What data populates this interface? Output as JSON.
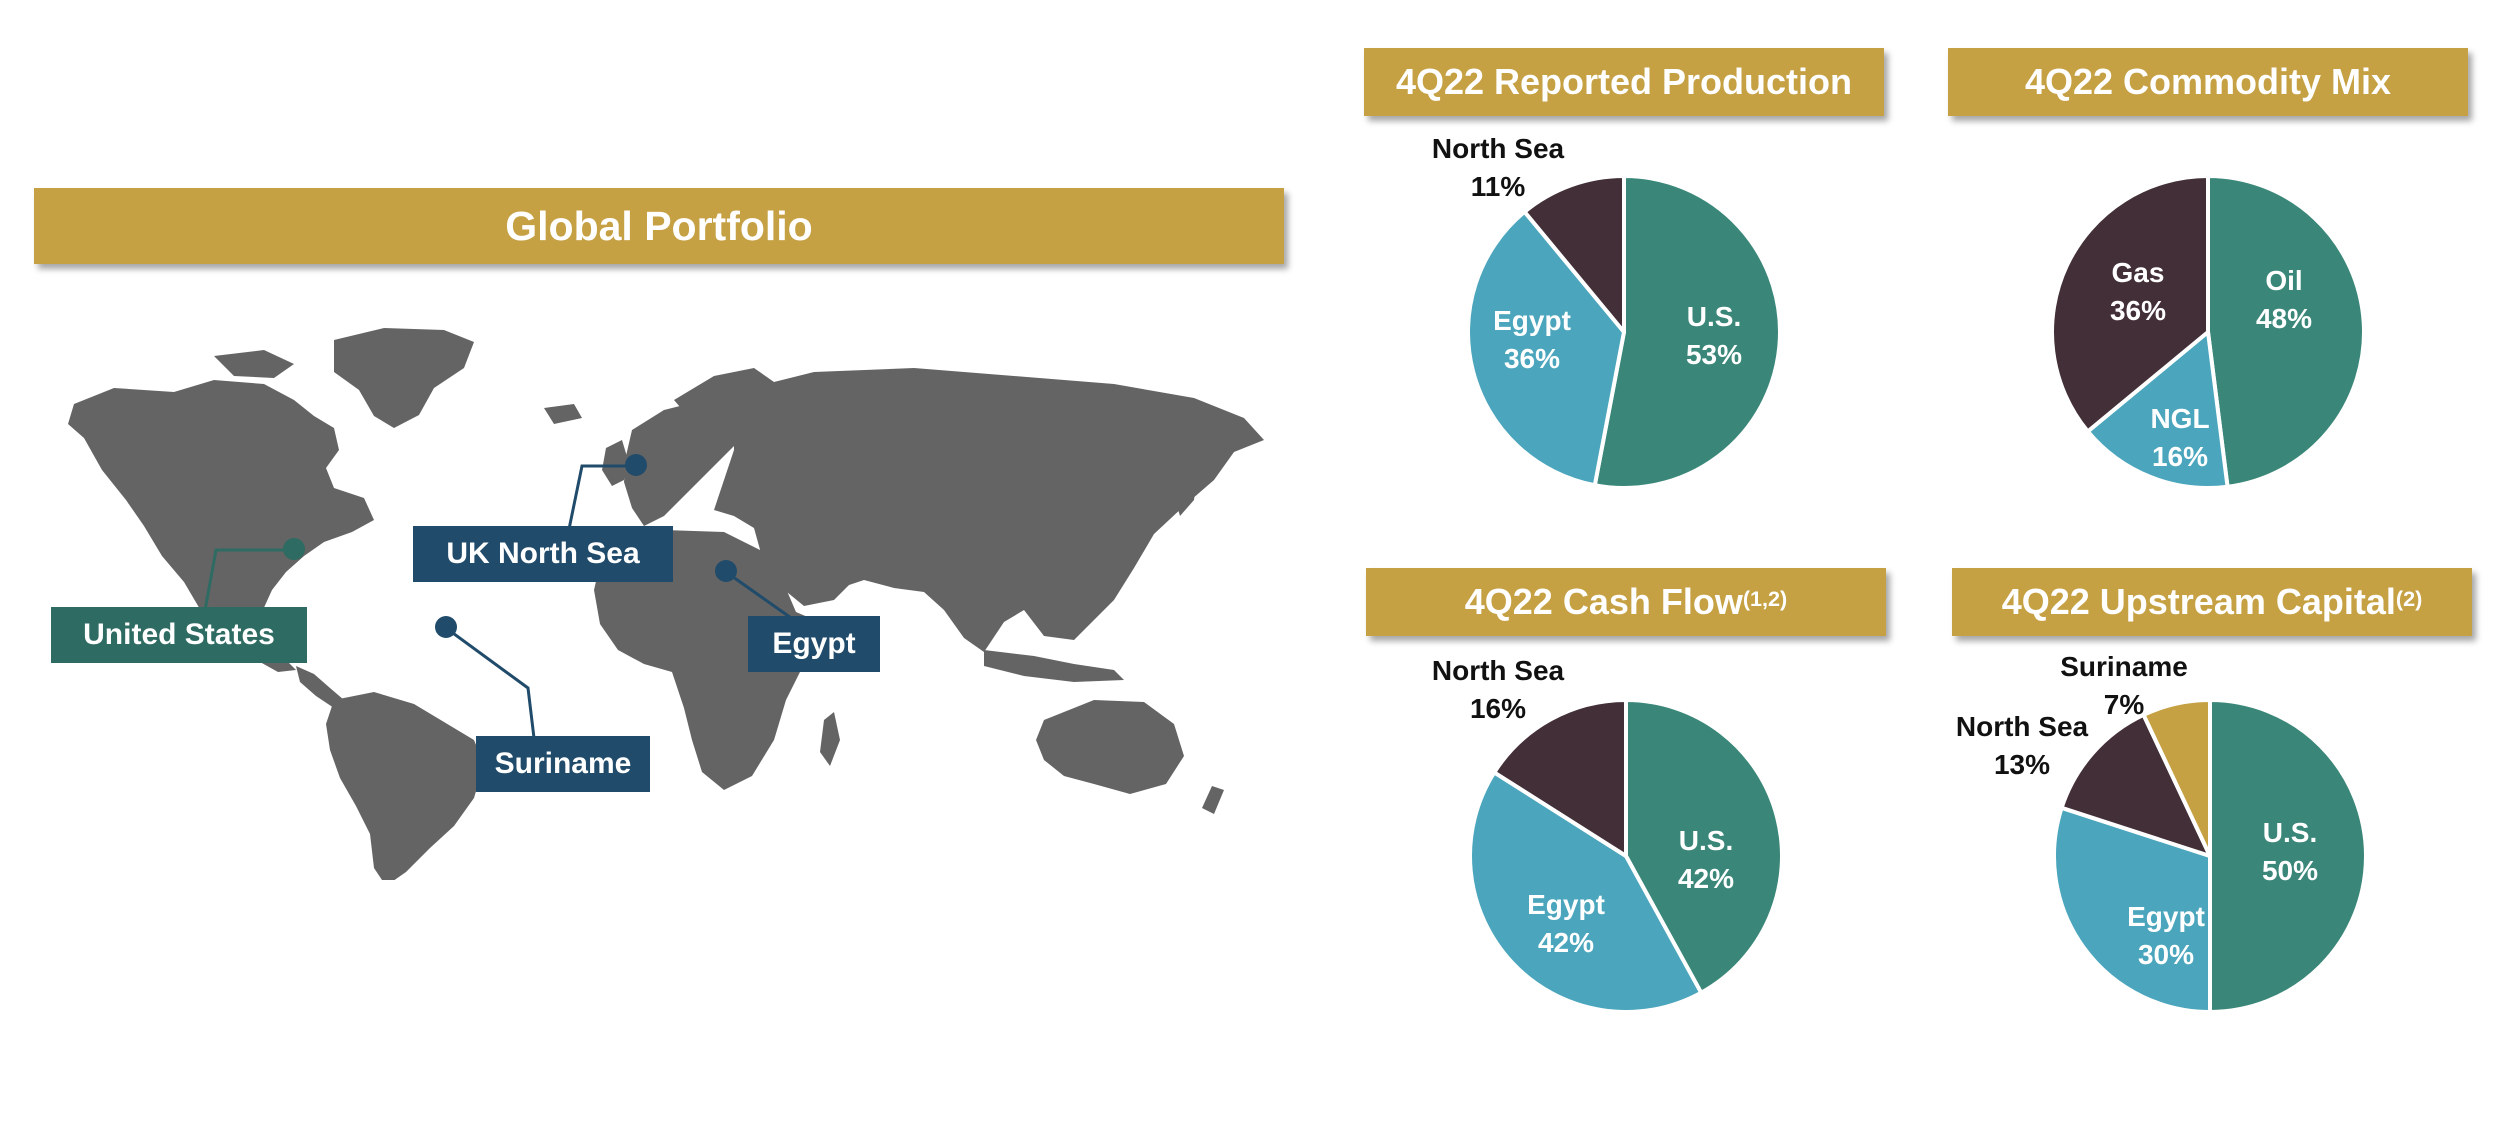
{
  "portfolio": {
    "title": "Global Portfolio",
    "labels": [
      {
        "name": "map-label-united-states",
        "text": "United States",
        "color": "#2E6B62"
      },
      {
        "name": "map-label-uk-north-sea",
        "text": "UK North Sea",
        "color": "#204B6A"
      },
      {
        "name": "map-label-egypt",
        "text": "Egypt",
        "color": "#204B6A"
      },
      {
        "name": "map-label-suriname",
        "text": "Suriname",
        "color": "#204B6A"
      }
    ]
  },
  "colors": {
    "gold": "#C6A144",
    "teal": "#3A8779",
    "blue": "#4BA6BD",
    "plum": "#432F37",
    "navy": "#204B6A",
    "map_land": "#646464"
  },
  "chart_data": [
    {
      "type": "pie",
      "title": "4Q22 Reported Production",
      "title_sup": "",
      "slices": [
        {
          "label": "U.S.",
          "value": 53,
          "display": "53%",
          "color": "#3A8779"
        },
        {
          "label": "Egypt",
          "value": 36,
          "display": "36%",
          "color": "#4BA6BD"
        },
        {
          "label": "North Sea",
          "value": 11,
          "display": "11%",
          "color": "#432F37"
        }
      ]
    },
    {
      "type": "pie",
      "title": "4Q22 Commodity Mix",
      "title_sup": "",
      "slices": [
        {
          "label": "Oil",
          "value": 48,
          "display": "48%",
          "color": "#3A8779"
        },
        {
          "label": "NGL",
          "value": 16,
          "display": "16%",
          "color": "#4BA6BD"
        },
        {
          "label": "Gas",
          "value": 36,
          "display": "36%",
          "color": "#432F37"
        }
      ]
    },
    {
      "type": "pie",
      "title": "4Q22 Cash Flow",
      "title_sup": "(1,2)",
      "slices": [
        {
          "label": "U.S.",
          "value": 42,
          "display": "42%",
          "color": "#3A8779"
        },
        {
          "label": "Egypt",
          "value": 42,
          "display": "42%",
          "color": "#4BA6BD"
        },
        {
          "label": "North Sea",
          "value": 16,
          "display": "16%",
          "color": "#432F37"
        }
      ]
    },
    {
      "type": "pie",
      "title": "4Q22 Upstream Capital",
      "title_sup": "(2)",
      "slices": [
        {
          "label": "U.S.",
          "value": 50,
          "display": "50%",
          "color": "#3A8779"
        },
        {
          "label": "Egypt",
          "value": 30,
          "display": "30%",
          "color": "#4BA6BD"
        },
        {
          "label": "North Sea",
          "value": 13,
          "display": "13%",
          "color": "#432F37"
        },
        {
          "label": "Suriname",
          "value": 7,
          "display": "7%",
          "color": "#C6A144"
        }
      ]
    }
  ]
}
